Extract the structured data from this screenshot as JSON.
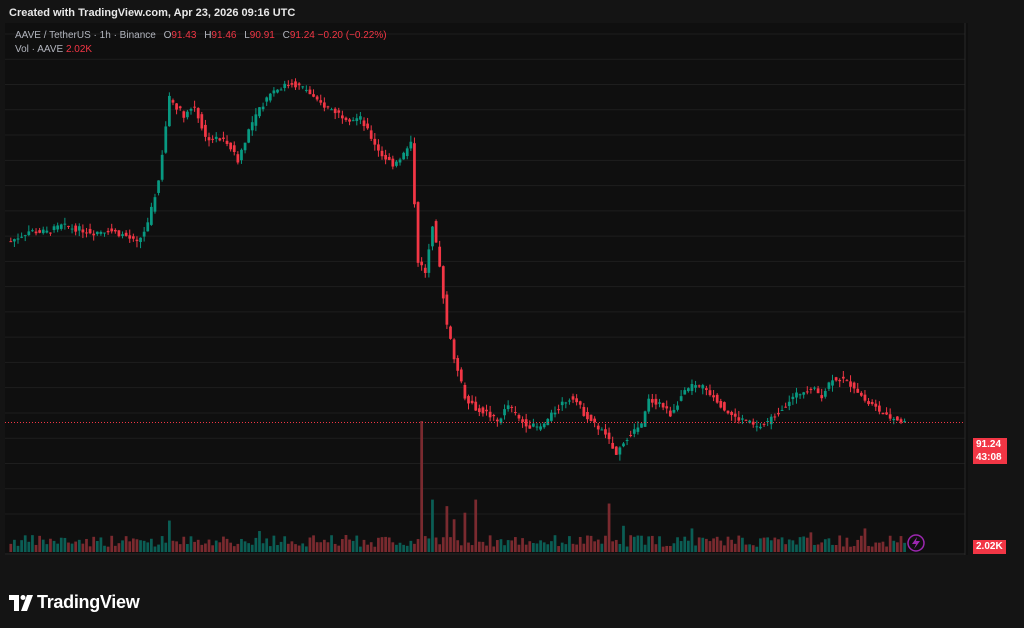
{
  "watermark_text": "Created with TradingView.com, Apr 23, 2026 09:16 UTC",
  "legend": {
    "symbol": "AAVE / TetherUS · 1h · Binance",
    "o_label": "O",
    "o_value": "91.43",
    "h_label": "H",
    "h_value": "91.46",
    "l_label": "L",
    "l_value": "90.91",
    "c_label": "C",
    "c_value": "91.24",
    "change": "−0.20 (−0.22%)",
    "vol_label": "Vol · AAVE",
    "vol_value": "2.02K"
  },
  "last_price": {
    "price": "91.24",
    "countdown": "43:08",
    "volume": "2.02K"
  },
  "logo_text": "TradingView",
  "colors": {
    "up": "#089981",
    "down": "#f23645",
    "up_vol": "#0b5e55",
    "down_vol": "#7a2a2f",
    "grid": "#1e1e1e",
    "background": "#0f0f0f"
  },
  "chart_data": {
    "type": "candlestick",
    "ylim": [
      84,
      122
    ],
    "y_ticks": [
      122,
      120,
      118,
      116,
      114,
      112,
      110,
      108,
      106,
      104,
      102,
      100,
      98,
      96,
      94,
      92,
      90,
      88,
      86,
      84
    ],
    "x_ticks": [
      "16",
      "17",
      "18",
      "19",
      "20",
      "21",
      "22",
      "23"
    ],
    "path": [
      [
        0,
        105.6
      ],
      [
        5,
        106.4
      ],
      [
        10,
        106.3
      ],
      [
        14,
        106.8
      ],
      [
        18,
        106.6
      ],
      [
        23,
        106.3
      ],
      [
        27,
        106.5
      ],
      [
        32,
        106.0
      ],
      [
        35,
        105.4
      ],
      [
        38,
        106.9
      ],
      [
        41,
        110.4
      ],
      [
        44,
        116.9
      ],
      [
        48,
        115.6
      ],
      [
        51,
        116.3
      ],
      [
        54,
        113.8
      ],
      [
        57,
        113.7
      ],
      [
        60,
        113.5
      ],
      [
        63,
        112.0
      ],
      [
        66,
        114.4
      ],
      [
        69,
        116.0
      ],
      [
        72,
        117.4
      ],
      [
        75,
        117.8
      ],
      [
        78,
        118.1
      ],
      [
        82,
        117.6
      ],
      [
        85,
        116.6
      ],
      [
        88,
        116.2
      ],
      [
        91,
        115.7
      ],
      [
        94,
        115.3
      ],
      [
        97,
        115.3
      ],
      [
        100,
        113.8
      ],
      [
        103,
        112.4
      ],
      [
        106,
        111.7
      ],
      [
        109,
        112.5
      ],
      [
        111,
        113.3
      ],
      [
        113,
        104.1
      ],
      [
        115,
        103.0
      ],
      [
        117,
        107.0
      ],
      [
        119,
        103.5
      ],
      [
        121,
        99.0
      ],
      [
        123,
        96.5
      ],
      [
        126,
        93.3
      ],
      [
        129,
        92.4
      ],
      [
        132,
        92.0
      ],
      [
        135,
        91.3
      ],
      [
        138,
        92.6
      ],
      [
        141,
        91.5
      ],
      [
        144,
        91.0
      ],
      [
        147,
        90.8
      ],
      [
        150,
        91.8
      ],
      [
        153,
        92.8
      ],
      [
        156,
        93.3
      ],
      [
        159,
        92.0
      ],
      [
        162,
        91.1
      ],
      [
        165,
        90.3
      ],
      [
        168,
        88.6
      ],
      [
        170,
        89.8
      ],
      [
        172,
        90.4
      ],
      [
        175,
        91.0
      ],
      [
        177,
        93.0
      ],
      [
        180,
        92.8
      ],
      [
        183,
        91.9
      ],
      [
        186,
        93.3
      ],
      [
        189,
        94.1
      ],
      [
        192,
        94.0
      ],
      [
        195,
        93.4
      ],
      [
        198,
        92.3
      ],
      [
        201,
        91.6
      ],
      [
        204,
        91.4
      ],
      [
        207,
        90.8
      ],
      [
        210,
        91.3
      ],
      [
        213,
        92.1
      ],
      [
        216,
        93.0
      ],
      [
        219,
        93.6
      ],
      [
        222,
        94.0
      ],
      [
        225,
        93.4
      ],
      [
        228,
        94.8
      ],
      [
        231,
        94.6
      ],
      [
        234,
        94.1
      ],
      [
        237,
        93.0
      ],
      [
        240,
        92.4
      ],
      [
        243,
        91.7
      ],
      [
        246,
        91.5
      ],
      [
        248,
        91.24
      ]
    ],
    "volume_ylim": [
      0,
      100
    ],
    "volume_spikes": [
      [
        44,
        24
      ],
      [
        60,
        10
      ],
      [
        69,
        16
      ],
      [
        114,
        100
      ],
      [
        117,
        40
      ],
      [
        121,
        35
      ],
      [
        123,
        25
      ],
      [
        126,
        30
      ],
      [
        129,
        40
      ],
      [
        166,
        37
      ],
      [
        170,
        20
      ],
      [
        189,
        18
      ],
      [
        193,
        10
      ],
      [
        222,
        15
      ],
      [
        237,
        18
      ]
    ]
  }
}
